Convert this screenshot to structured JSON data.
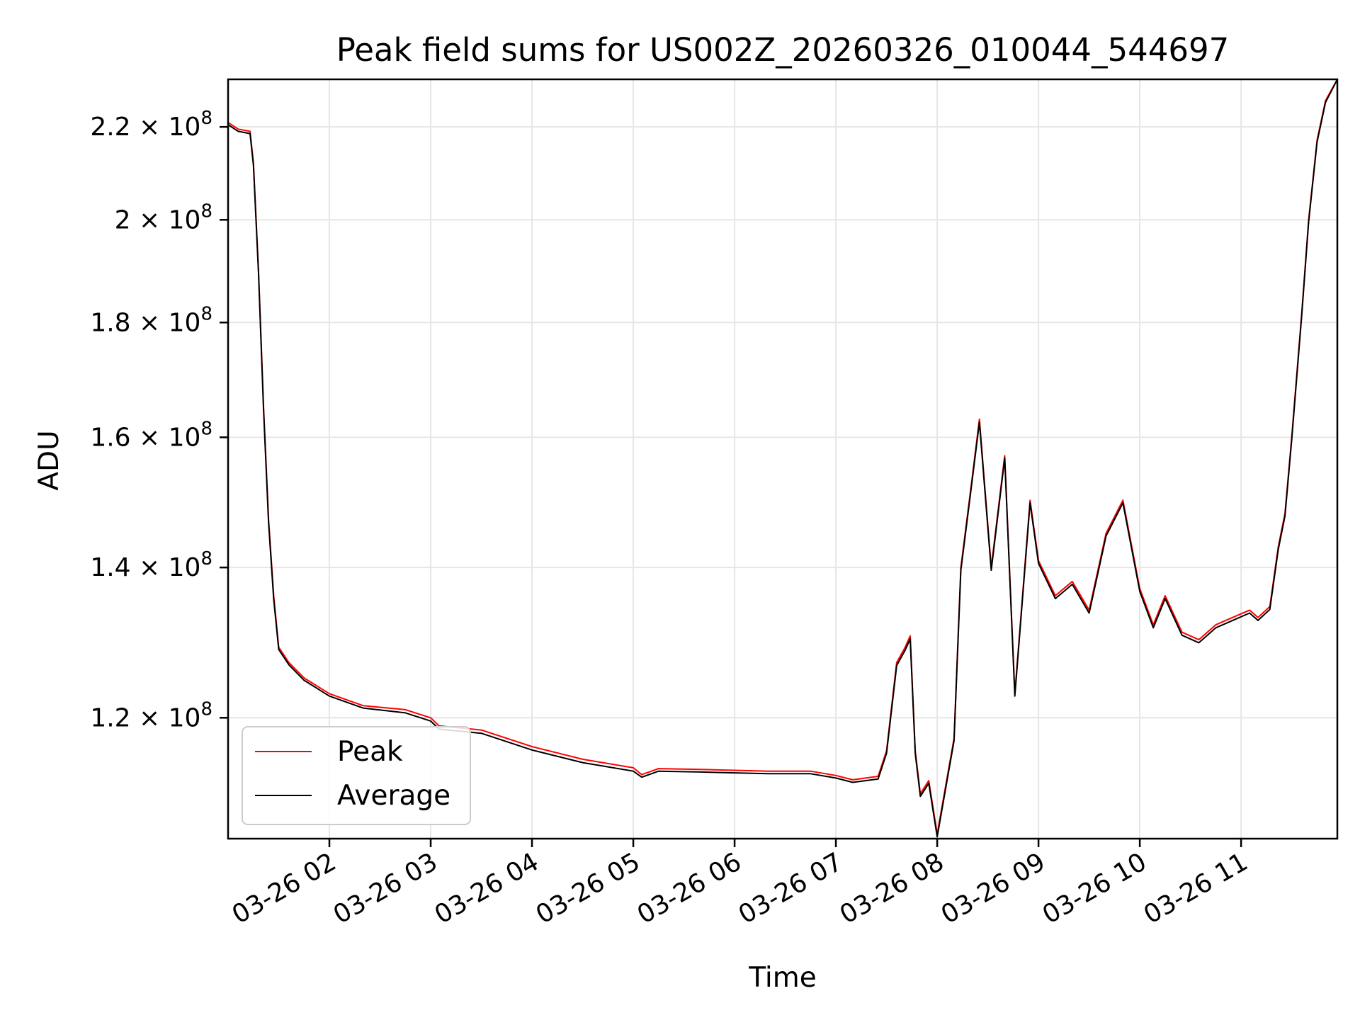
{
  "chart_data": {
    "type": "line",
    "title": "Peak field sums for US002Z_20260326_010044_544697",
    "xlabel": "Time",
    "ylabel": "ADU",
    "x_unit": "hours",
    "xlim": [
      "03-26 01:00",
      "03-26 11:57"
    ],
    "ylim": [
      106000000,
      231000000
    ],
    "yscale": "log",
    "grid": true,
    "legend_position": "lower-left",
    "x_ticks": [
      {
        "t": "03-26 02:00",
        "label": "03-26 02"
      },
      {
        "t": "03-26 03:00",
        "label": "03-26 03"
      },
      {
        "t": "03-26 04:00",
        "label": "03-26 04"
      },
      {
        "t": "03-26 05:00",
        "label": "03-26 05"
      },
      {
        "t": "03-26 06:00",
        "label": "03-26 06"
      },
      {
        "t": "03-26 07:00",
        "label": "03-26 07"
      },
      {
        "t": "03-26 08:00",
        "label": "03-26 08"
      },
      {
        "t": "03-26 09:00",
        "label": "03-26 09"
      },
      {
        "t": "03-26 10:00",
        "label": "03-26 10"
      },
      {
        "t": "03-26 11:00",
        "label": "03-26 11"
      }
    ],
    "y_ticks": [
      {
        "value": 120000000,
        "mantissa": "1.2",
        "base": "10",
        "exp": "8"
      },
      {
        "value": 140000000,
        "mantissa": "1.4",
        "base": "10",
        "exp": "8"
      },
      {
        "value": 160000000,
        "mantissa": "1.6",
        "base": "10",
        "exp": "8"
      },
      {
        "value": 180000000,
        "mantissa": "1.8",
        "base": "10",
        "exp": "8"
      },
      {
        "value": 200000000,
        "mantissa": "2",
        "base": "10",
        "exp": "8"
      },
      {
        "value": 220000000,
        "mantissa": "2.2",
        "base": "10",
        "exp": "8"
      }
    ],
    "series": [
      {
        "name": "Peak",
        "color": "#ff0000",
        "points": [
          [
            "03-26 01:00",
            221000000
          ],
          [
            "03-26 01:06",
            219500000
          ],
          [
            "03-26 01:13",
            219000000
          ],
          [
            "03-26 01:15",
            212000000
          ],
          [
            "03-26 01:18",
            190000000
          ],
          [
            "03-26 01:21",
            165000000
          ],
          [
            "03-26 01:24",
            147000000
          ],
          [
            "03-26 01:27",
            136000000
          ],
          [
            "03-26 01:30",
            129000000
          ],
          [
            "03-26 01:36",
            127000000
          ],
          [
            "03-26 01:45",
            125000000
          ],
          [
            "03-26 02:00",
            123000000
          ],
          [
            "03-26 02:20",
            121500000
          ],
          [
            "03-26 02:45",
            121000000
          ],
          [
            "03-26 03:00",
            120000000
          ],
          [
            "03-26 03:05",
            119000000
          ],
          [
            "03-26 03:30",
            118500000
          ],
          [
            "03-26 04:00",
            116500000
          ],
          [
            "03-26 04:30",
            115000000
          ],
          [
            "03-26 05:00",
            114000000
          ],
          [
            "03-26 05:05",
            113200000
          ],
          [
            "03-26 05:15",
            113900000
          ],
          [
            "03-26 05:40",
            113800000
          ],
          [
            "03-26 06:00",
            113700000
          ],
          [
            "03-26 06:20",
            113600000
          ],
          [
            "03-26 06:45",
            113600000
          ],
          [
            "03-26 07:00",
            113100000
          ],
          [
            "03-26 07:10",
            112600000
          ],
          [
            "03-26 07:25",
            113000000
          ],
          [
            "03-26 07:30",
            116000000
          ],
          [
            "03-26 07:36",
            127000000
          ],
          [
            "03-26 07:41",
            129000000
          ],
          [
            "03-26 07:44",
            130500000
          ],
          [
            "03-26 07:47",
            116000000
          ],
          [
            "03-26 07:50",
            111000000
          ],
          [
            "03-26 07:55",
            112500000
          ],
          [
            "03-26 08:00",
            106500000
          ],
          [
            "03-26 08:06",
            113000000
          ],
          [
            "03-26 08:10",
            117500000
          ],
          [
            "03-26 08:14",
            140000000
          ],
          [
            "03-26 08:20",
            152000000
          ],
          [
            "03-26 08:25",
            163000000
          ],
          [
            "03-26 08:32",
            140000000
          ],
          [
            "03-26 08:40",
            157000000
          ],
          [
            "03-26 08:46",
            123000000
          ],
          [
            "03-26 08:55",
            150000000
          ],
          [
            "03-26 09:00",
            141000000
          ],
          [
            "03-26 09:10",
            136000000
          ],
          [
            "03-26 09:20",
            138000000
          ],
          [
            "03-26 09:30",
            134000000
          ],
          [
            "03-26 09:40",
            145000000
          ],
          [
            "03-26 09:50",
            150000000
          ],
          [
            "03-26 10:00",
            137000000
          ],
          [
            "03-26 10:08",
            132000000
          ],
          [
            "03-26 10:15",
            136000000
          ],
          [
            "03-26 10:25",
            131000000
          ],
          [
            "03-26 10:35",
            130000000
          ],
          [
            "03-26 10:45",
            132000000
          ],
          [
            "03-26 10:55",
            133000000
          ],
          [
            "03-26 11:05",
            134000000
          ],
          [
            "03-26 11:10",
            133000000
          ],
          [
            "03-26 11:17",
            134500000
          ],
          [
            "03-26 11:22",
            143000000
          ],
          [
            "03-26 11:26",
            148000000
          ],
          [
            "03-26 11:30",
            160000000
          ],
          [
            "03-26 11:36",
            182000000
          ],
          [
            "03-26 11:40",
            200000000
          ],
          [
            "03-26 11:45",
            217000000
          ],
          [
            "03-26 11:50",
            226000000
          ],
          [
            "03-26 11:57",
            231000000
          ]
        ]
      },
      {
        "name": "Average",
        "color": "#000000",
        "points": [
          [
            "03-26 01:00",
            220500000
          ],
          [
            "03-26 01:06",
            219000000
          ],
          [
            "03-26 01:13",
            218500000
          ],
          [
            "03-26 01:15",
            211500000
          ],
          [
            "03-26 01:18",
            189500000
          ],
          [
            "03-26 01:21",
            164500000
          ],
          [
            "03-26 01:24",
            146500000
          ],
          [
            "03-26 01:27",
            135500000
          ],
          [
            "03-26 01:30",
            128700000
          ],
          [
            "03-26 01:36",
            126700000
          ],
          [
            "03-26 01:45",
            124700000
          ],
          [
            "03-26 02:00",
            122700000
          ],
          [
            "03-26 02:20",
            121200000
          ],
          [
            "03-26 02:45",
            120600000
          ],
          [
            "03-26 03:00",
            119600000
          ],
          [
            "03-26 03:05",
            118600000
          ],
          [
            "03-26 03:30",
            118100000
          ],
          [
            "03-26 04:00",
            116100000
          ],
          [
            "03-26 04:30",
            114600000
          ],
          [
            "03-26 05:00",
            113600000
          ],
          [
            "03-26 05:05",
            112900000
          ],
          [
            "03-26 05:15",
            113600000
          ],
          [
            "03-26 05:40",
            113500000
          ],
          [
            "03-26 06:00",
            113400000
          ],
          [
            "03-26 06:20",
            113300000
          ],
          [
            "03-26 06:45",
            113300000
          ],
          [
            "03-26 07:00",
            112800000
          ],
          [
            "03-26 07:10",
            112300000
          ],
          [
            "03-26 07:25",
            112700000
          ],
          [
            "03-26 07:30",
            115700000
          ],
          [
            "03-26 07:36",
            126600000
          ],
          [
            "03-26 07:41",
            128600000
          ],
          [
            "03-26 07:44",
            130100000
          ],
          [
            "03-26 07:47",
            115700000
          ],
          [
            "03-26 07:50",
            110700000
          ],
          [
            "03-26 07:55",
            112200000
          ],
          [
            "03-26 08:00",
            106200000
          ],
          [
            "03-26 08:06",
            112700000
          ],
          [
            "03-26 08:10",
            117200000
          ],
          [
            "03-26 08:14",
            139600000
          ],
          [
            "03-26 08:20",
            151600000
          ],
          [
            "03-26 08:25",
            162500000
          ],
          [
            "03-26 08:32",
            139600000
          ],
          [
            "03-26 08:40",
            156600000
          ],
          [
            "03-26 08:46",
            122700000
          ],
          [
            "03-26 08:55",
            149600000
          ],
          [
            "03-26 09:00",
            140600000
          ],
          [
            "03-26 09:10",
            135600000
          ],
          [
            "03-26 09:20",
            137600000
          ],
          [
            "03-26 09:30",
            133600000
          ],
          [
            "03-26 09:40",
            144600000
          ],
          [
            "03-26 09:50",
            149600000
          ],
          [
            "03-26 10:00",
            136600000
          ],
          [
            "03-26 10:08",
            131600000
          ],
          [
            "03-26 10:15",
            135600000
          ],
          [
            "03-26 10:25",
            130600000
          ],
          [
            "03-26 10:35",
            129600000
          ],
          [
            "03-26 10:45",
            131600000
          ],
          [
            "03-26 10:55",
            132600000
          ],
          [
            "03-26 11:05",
            133600000
          ],
          [
            "03-26 11:10",
            132600000
          ],
          [
            "03-26 11:17",
            134100000
          ],
          [
            "03-26 11:22",
            142600000
          ],
          [
            "03-26 11:26",
            147600000
          ],
          [
            "03-26 11:30",
            159600000
          ],
          [
            "03-26 11:36",
            181600000
          ],
          [
            "03-26 11:40",
            199600000
          ],
          [
            "03-26 11:45",
            216600000
          ],
          [
            "03-26 11:50",
            225600000
          ],
          [
            "03-26 11:57",
            231000000
          ]
        ]
      }
    ]
  }
}
